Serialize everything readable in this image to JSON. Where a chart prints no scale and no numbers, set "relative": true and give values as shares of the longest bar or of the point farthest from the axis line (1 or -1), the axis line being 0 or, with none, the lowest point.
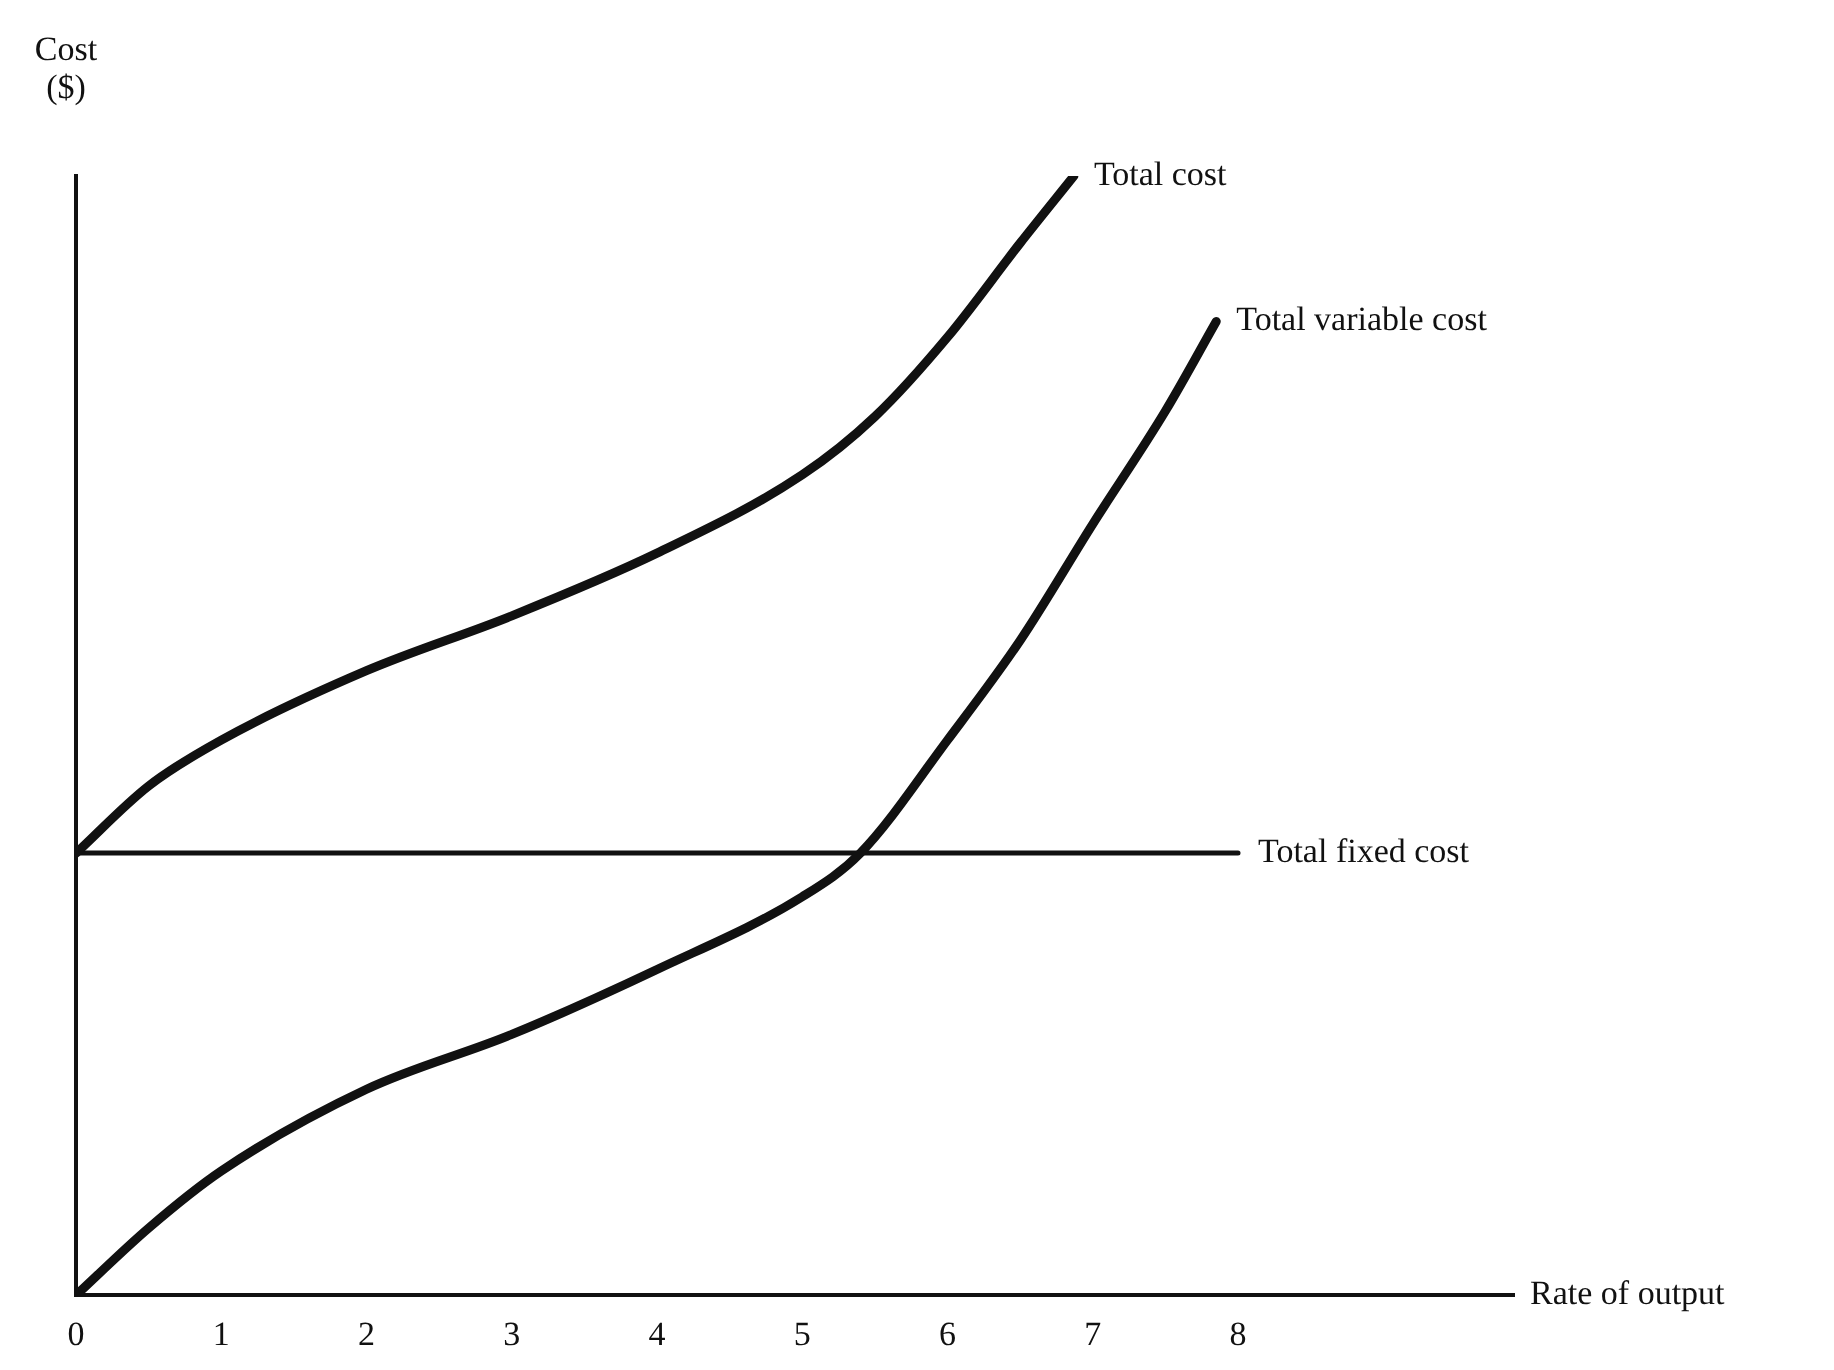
{
  "chart_data": {
    "type": "line",
    "relative": true,
    "xlabel": "Rate of output",
    "ylabel": "Cost ($)",
    "xlim": [
      0,
      9.9
    ],
    "xticks": [
      0,
      1,
      2,
      3,
      4,
      5,
      6,
      7,
      8
    ],
    "legend": false,
    "grid": false,
    "marker": "none",
    "line_style": "solid",
    "series": [
      {
        "name": "Total cost",
        "color": "#111111",
        "x": [
          0,
          0.5,
          1,
          2,
          3,
          4,
          5,
          5.5,
          6,
          6.5,
          6.87
        ],
        "values": [
          0.395,
          0.455,
          0.496,
          0.558,
          0.607,
          0.663,
          0.733,
          0.785,
          0.856,
          0.94,
          1.0
        ]
      },
      {
        "name": "Total variable cost",
        "color": "#111111",
        "x": [
          0,
          0.5,
          1,
          2,
          3,
          4,
          5,
          5.4,
          6,
          6.5,
          7,
          7.5,
          7.85
        ],
        "values": [
          0,
          0.06,
          0.111,
          0.184,
          0.233,
          0.291,
          0.356,
          0.395,
          0.496,
          0.585,
          0.689,
          0.79,
          0.87
        ]
      },
      {
        "name": "Total fixed cost",
        "color": "#111111",
        "x": [
          0,
          8
        ],
        "values": [
          0.395,
          0.395
        ]
      }
    ]
  }
}
